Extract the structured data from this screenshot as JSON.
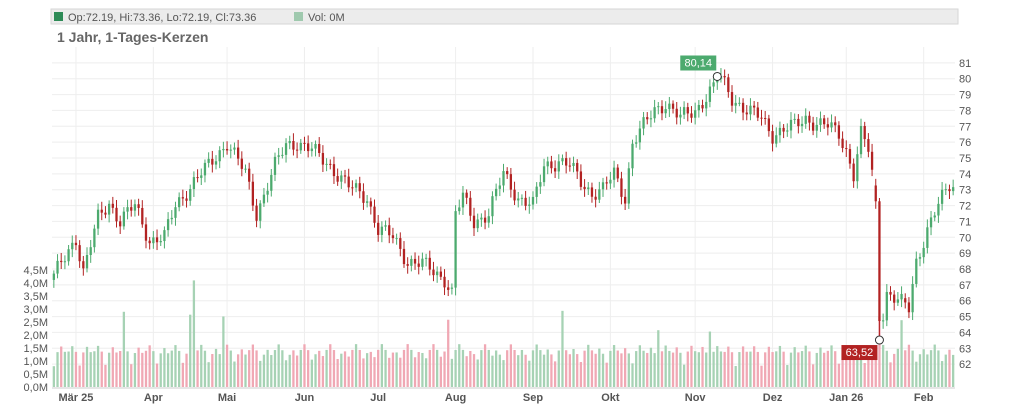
{
  "legend": {
    "ohlc_text": "Op:72.19, Hi:73.36, Lo:72.19, Cl:73.36",
    "ohlc_color": "#2e8b57",
    "volume_text": "Vol: 0M",
    "volume_color": "#9fc9ae"
  },
  "subtitle": "1 Jahr, 1-Tages-Kerzen",
  "chart_data": {
    "type": "candlestick",
    "title": "",
    "subtitle": "1 Jahr, 1-Tages-Kerzen",
    "up_color": "#4caa6e",
    "down_color": "#b22222",
    "volume_up_color": "#a6d2b4",
    "volume_down_color": "#f0a8b4",
    "grid": true,
    "price_axis": {
      "side": "right",
      "ylim": [
        61,
        82
      ],
      "ticks": [
        62,
        63,
        64,
        65,
        66,
        67,
        68,
        69,
        70,
        71,
        72,
        73,
        74,
        75,
        76,
        77,
        78,
        79,
        80,
        81
      ]
    },
    "volume_axis": {
      "side": "left",
      "ylim": [
        0,
        4.5
      ],
      "ticks": [
        0,
        0.5,
        1.0,
        1.5,
        2.0,
        2.5,
        3.0,
        3.5,
        4.0,
        4.5
      ],
      "tick_labels": [
        "0,0M",
        "0,5M",
        "1,0M",
        "1,5M",
        "2,0M",
        "2,5M",
        "3,0M",
        "3,5M",
        "4,0M",
        "4,5M"
      ]
    },
    "x_axis": {
      "labels": [
        "Mär 25",
        "Apr",
        "Mai",
        "Jun",
        "Jul",
        "Aug",
        "Sep",
        "Okt",
        "Nov",
        "Dez",
        "Jan 26",
        "Feb"
      ],
      "label_index": [
        6,
        27,
        47,
        68,
        88,
        109,
        130,
        151,
        174,
        195,
        215,
        236
      ]
    },
    "annotations": {
      "high": {
        "value": 80.14,
        "label": "80,14",
        "index": 180,
        "color": "#4caa6e"
      },
      "low": {
        "value": 63.52,
        "label": "63,52",
        "index": 224,
        "color": "#b22222"
      }
    },
    "waypoints": [
      [
        0,
        67.5
      ],
      [
        6,
        70.0
      ],
      [
        8,
        67.8
      ],
      [
        12,
        71.2
      ],
      [
        15,
        72.2
      ],
      [
        18,
        71.0
      ],
      [
        22,
        72.0
      ],
      [
        26,
        69.8
      ],
      [
        30,
        70.0
      ],
      [
        33,
        72.0
      ],
      [
        38,
        73.5
      ],
      [
        42,
        74.5
      ],
      [
        47,
        76.0
      ],
      [
        52,
        74.0
      ],
      [
        55,
        71.5
      ],
      [
        60,
        74.5
      ],
      [
        63,
        75.8
      ],
      [
        66,
        76.0
      ],
      [
        70,
        75.5
      ],
      [
        75,
        74.5
      ],
      [
        80,
        73.2
      ],
      [
        85,
        72.5
      ],
      [
        88,
        70.5
      ],
      [
        92,
        70.0
      ],
      [
        96,
        68.5
      ],
      [
        100,
        68.3
      ],
      [
        106,
        67.4
      ],
      [
        108,
        66.5
      ],
      [
        109,
        71.5
      ],
      [
        111,
        72.5
      ],
      [
        114,
        71.0
      ],
      [
        118,
        71.5
      ],
      [
        122,
        74.0
      ],
      [
        126,
        72.5
      ],
      [
        130,
        72.0
      ],
      [
        133,
        74.5
      ],
      [
        137,
        74.8
      ],
      [
        140,
        74.5
      ],
      [
        143,
        73.5
      ],
      [
        146,
        72.8
      ],
      [
        149,
        73.0
      ],
      [
        152,
        74.0
      ],
      [
        155,
        72.5
      ],
      [
        157,
        76.0
      ],
      [
        160,
        77.0
      ],
      [
        163,
        78.0
      ],
      [
        166,
        78.5
      ],
      [
        170,
        77.5
      ],
      [
        174,
        78.0
      ],
      [
        178,
        79.2
      ],
      [
        181,
        80.0
      ],
      [
        184,
        78.8
      ],
      [
        188,
        78.0
      ],
      [
        192,
        77.5
      ],
      [
        195,
        76.5
      ],
      [
        198,
        76.8
      ],
      [
        201,
        77.0
      ],
      [
        204,
        77.5
      ],
      [
        207,
        77.2
      ],
      [
        210,
        77.0
      ],
      [
        213,
        76.5
      ],
      [
        215,
        75.5
      ],
      [
        217,
        74.0
      ],
      [
        219,
        76.5
      ],
      [
        221,
        75.5
      ],
      [
        222,
        74.0
      ],
      [
        223,
        72.0
      ],
      [
        224,
        64.0
      ],
      [
        226,
        66.5
      ],
      [
        229,
        66.0
      ],
      [
        232,
        65.5
      ],
      [
        234,
        68.5
      ],
      [
        237,
        70.5
      ],
      [
        240,
        72.0
      ],
      [
        243,
        73.3
      ]
    ]
  }
}
